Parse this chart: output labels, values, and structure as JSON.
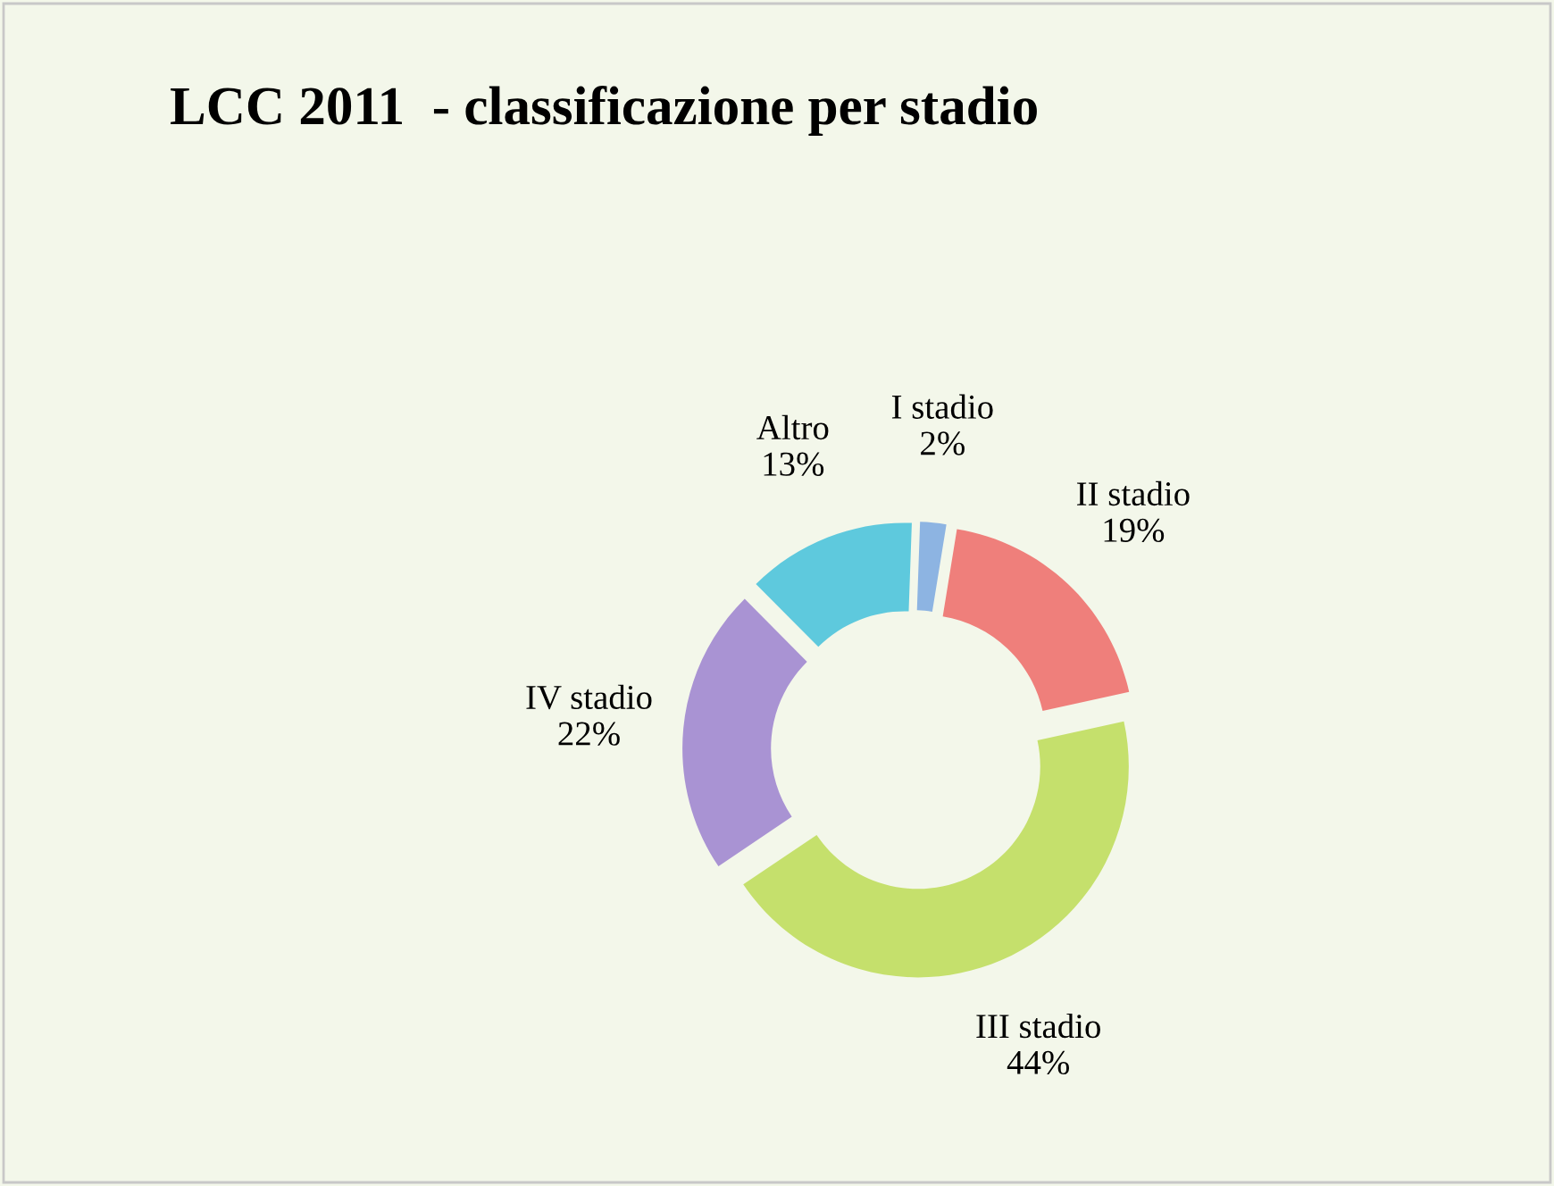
{
  "chart_data": {
    "type": "donut",
    "title": "LCC 2011  - classificazione per stadio",
    "categories": [
      "I stadio",
      "II stadio",
      "III stadio",
      "IV stadio",
      "Altro"
    ],
    "values": [
      2,
      19,
      44,
      22,
      13
    ],
    "value_labels": [
      "2%",
      "19%",
      "44%",
      "22%",
      "13%"
    ],
    "colors": [
      "#8db4e2",
      "#ef7f7b",
      "#c5e06c",
      "#a993d3",
      "#5ec9dd"
    ],
    "legend": false
  }
}
